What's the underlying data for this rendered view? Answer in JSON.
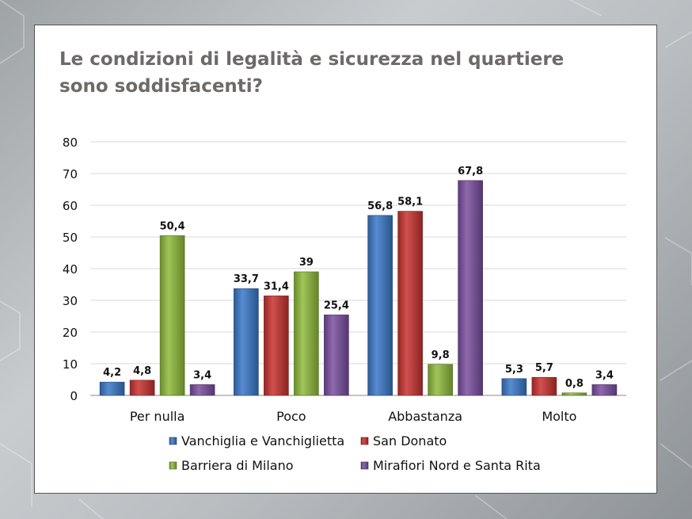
{
  "chart_data": {
    "type": "bar",
    "title_lines": [
      "Le condizioni di legalità e sicurezza nel quartiere",
      "sono soddisfacenti?"
    ],
    "categories": [
      "Per nulla",
      "Poco",
      "Abbastanza",
      "Molto"
    ],
    "ylim": [
      0,
      80
    ],
    "yticks": [
      0,
      10,
      20,
      30,
      40,
      50,
      60,
      70,
      80
    ],
    "grid": true,
    "legend_position": "bottom",
    "series": [
      {
        "name": "Vanchiglia e Vanchiglietta",
        "color": "#3b78c8",
        "values": [
          4.2,
          33.7,
          56.8,
          5.3
        ],
        "labels": [
          "4,2",
          "33,7",
          "56,8",
          "5,3"
        ]
      },
      {
        "name": "San Donato",
        "color": "#c8322f",
        "values": [
          4.8,
          31.4,
          58.1,
          5.7
        ],
        "labels": [
          "4,8",
          "31,4",
          "58,1",
          "5,7"
        ]
      },
      {
        "name": "Barriera di Milano",
        "color": "#8fbb3a",
        "values": [
          50.4,
          39,
          9.8,
          0.8
        ],
        "labels": [
          "50,4",
          "39",
          "9,8",
          "0,8"
        ]
      },
      {
        "name": "Mirafiori Nord e Santa Rita",
        "color": "#7a4fa0",
        "values": [
          3.4,
          25.4,
          67.8,
          3.4
        ],
        "labels": [
          "3,4",
          "25,4",
          "67,8",
          "3,4"
        ]
      }
    ]
  }
}
